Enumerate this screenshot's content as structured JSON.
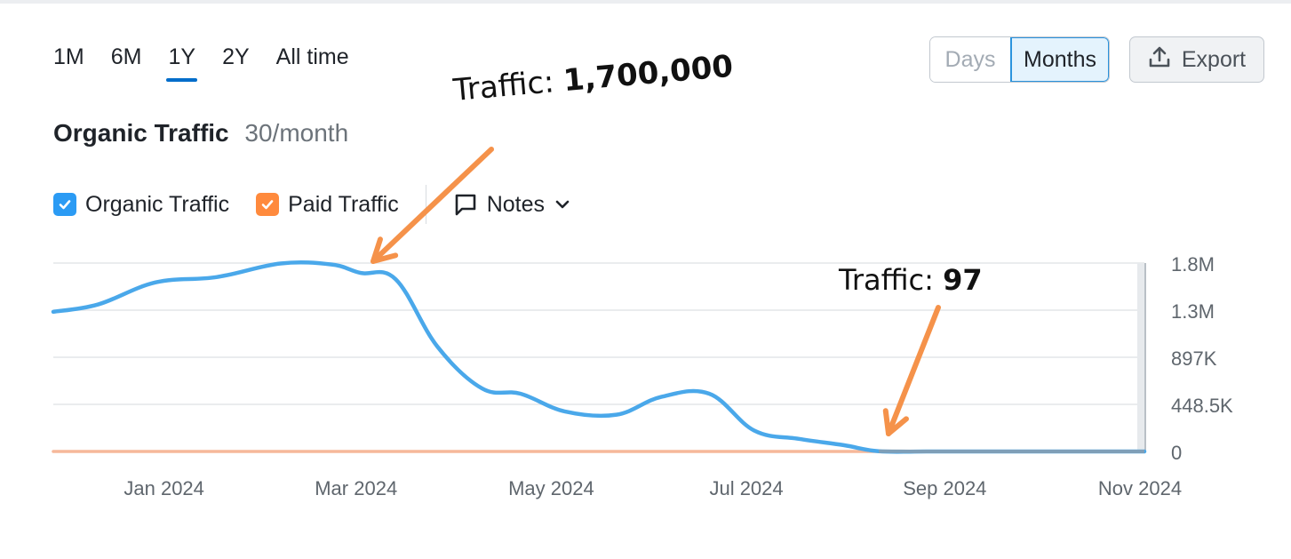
{
  "toolbar": {
    "periods": [
      "1M",
      "6M",
      "1Y",
      "2Y",
      "All time"
    ],
    "active_period": "1Y",
    "granularity": {
      "days": "Days",
      "months": "Months",
      "selected": "Months"
    },
    "export_label": "Export"
  },
  "header": {
    "title": "Organic Traffic",
    "rate": "30/month"
  },
  "legend": {
    "organic": "Organic Traffic",
    "paid": "Paid Traffic",
    "notes": "Notes"
  },
  "annotations": {
    "peak_prefix": "Traffic: ",
    "peak_value": "1,700,000",
    "low_prefix": "Traffic: ",
    "low_value": "97"
  },
  "colors": {
    "organic": "#4aa8ea",
    "paid": "#f6b89a",
    "arrow": "#f5924a",
    "active_tab": "#006dca"
  },
  "chart_data": {
    "type": "line",
    "x_tick_labels": [
      "Jan 2024",
      "Mar 2024",
      "May 2024",
      "Jul 2024",
      "Sep 2024",
      "Nov 2024"
    ],
    "y_tick_labels": [
      "1.8M",
      "1.3M",
      "897K",
      "448.5K",
      "0"
    ],
    "y_tick_values": [
      1794000,
      1345500,
      897000,
      448500,
      0
    ],
    "ylim": [
      0,
      1794000
    ],
    "xlim": [
      "2023-11-26",
      "2024-11-01"
    ],
    "grid": true,
    "x": [
      "2023-11-26",
      "2023-12-10",
      "2023-12-28",
      "2024-01-16",
      "2024-02-05",
      "2024-02-21",
      "2024-03-01",
      "2024-03-12",
      "2024-03-25",
      "2024-04-08",
      "2024-04-20",
      "2024-05-04",
      "2024-05-20",
      "2024-06-03",
      "2024-06-18",
      "2024-07-02",
      "2024-07-16",
      "2024-07-30",
      "2024-08-10",
      "2024-08-25",
      "2024-09-10",
      "2024-10-01",
      "2024-11-01"
    ],
    "series": [
      {
        "name": "Organic Traffic",
        "values": [
          1330000,
          1400000,
          1610000,
          1660000,
          1790000,
          1780000,
          1700000,
          1640000,
          1000000,
          600000,
          550000,
          380000,
          350000,
          520000,
          550000,
          200000,
          120000,
          60000,
          2000,
          97,
          97,
          97,
          97
        ]
      },
      {
        "name": "Paid Traffic",
        "values": [
          0,
          0,
          0,
          0,
          0,
          0,
          0,
          0,
          0,
          0,
          0,
          0,
          0,
          0,
          0,
          0,
          0,
          0,
          0,
          0,
          0,
          0,
          0
        ]
      }
    ]
  }
}
